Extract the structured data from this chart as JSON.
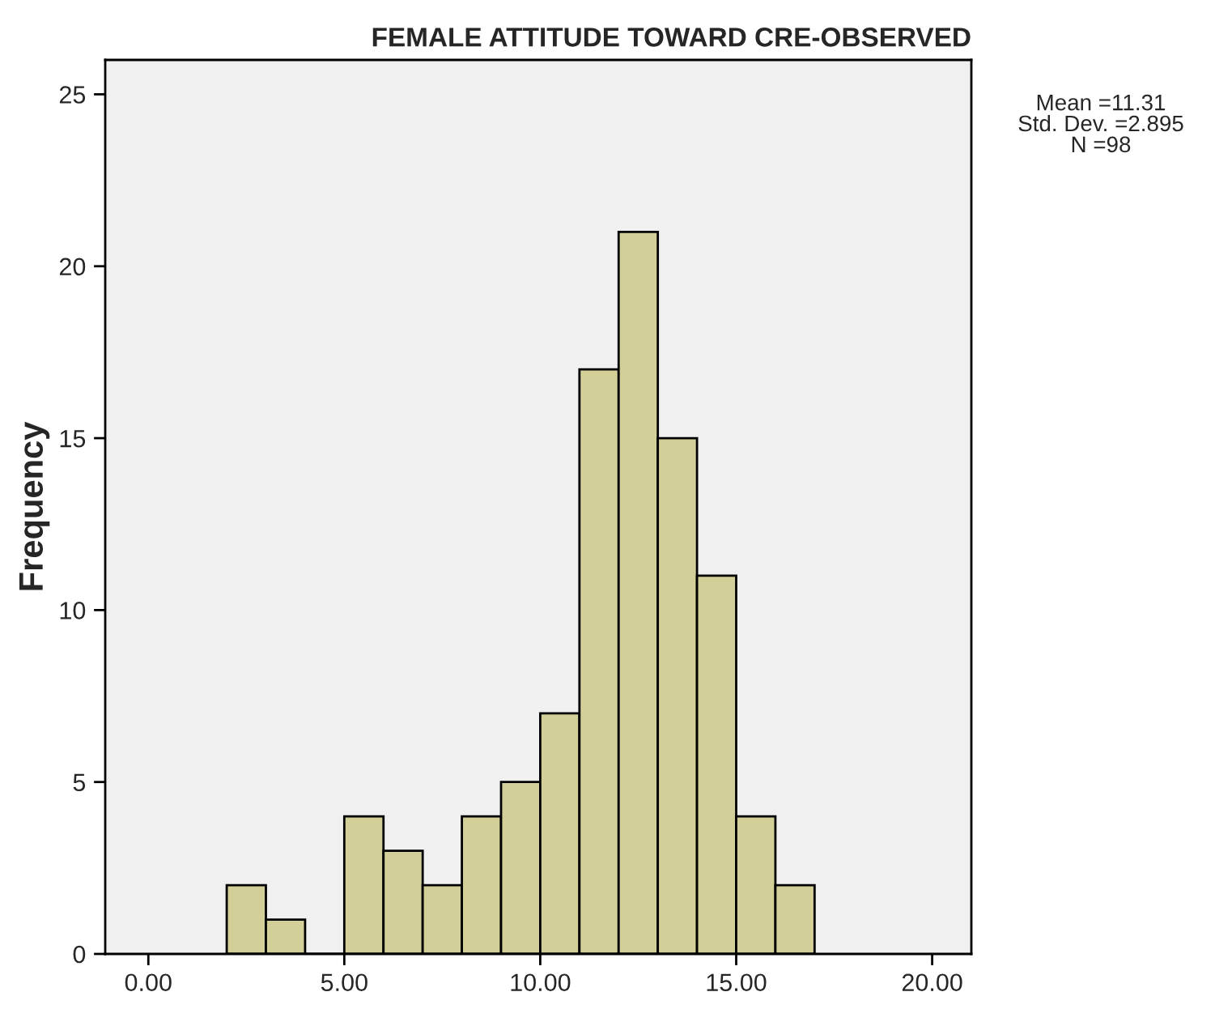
{
  "chart_data": {
    "type": "histogram",
    "title": "FEMALE ATTITUDE TOWARD CRE-OBSERVED",
    "ylabel": "Frequency",
    "bins": [
      2,
      3,
      4,
      5,
      6,
      7,
      8,
      9,
      10,
      11,
      12,
      13,
      14,
      15,
      16,
      17
    ],
    "values": [
      2,
      1,
      0,
      4,
      3,
      2,
      4,
      5,
      7,
      17,
      21,
      15,
      11,
      4,
      2
    ],
    "color": "#d3cf99",
    "xlim": [
      -1.1,
      21
    ],
    "ylim": [
      0,
      26
    ],
    "xticks": [
      {
        "value": 0,
        "label": "0.00"
      },
      {
        "value": 5,
        "label": "5.00"
      },
      {
        "value": 10,
        "label": "10.00"
      },
      {
        "value": 15,
        "label": "15.00"
      },
      {
        "value": 20,
        "label": "20.00"
      }
    ],
    "yticks": [
      0,
      5,
      10,
      15,
      20,
      25
    ],
    "grid": false,
    "annotations": [
      "Mean =11.31\nStd. Dev. =2.895\nN =98"
    ]
  }
}
